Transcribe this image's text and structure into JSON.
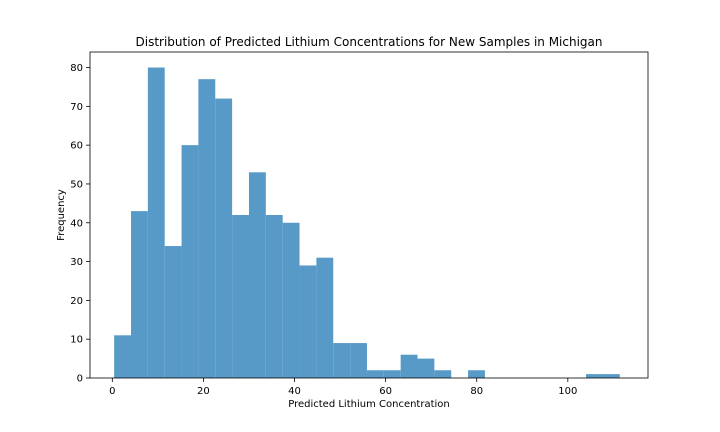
{
  "chart_data": {
    "type": "bar",
    "title": "Distribution of Predicted Lithium Concentrations for New Samples in Michigan",
    "xlabel": "Predicted Lithium Concentration",
    "ylabel": "Frequency",
    "xlim": [
      -4.9,
      117.6
    ],
    "ylim": [
      0,
      84
    ],
    "xticks": [
      0,
      20,
      40,
      60,
      80,
      100
    ],
    "yticks": [
      0,
      10,
      20,
      30,
      40,
      50,
      60,
      70,
      80
    ],
    "bar_color": "#5799c7",
    "bins": [
      {
        "x0": 0.4,
        "x1": 4.1,
        "value": 11
      },
      {
        "x0": 4.1,
        "x1": 7.8,
        "value": 43
      },
      {
        "x0": 7.8,
        "x1": 11.5,
        "value": 80
      },
      {
        "x0": 11.5,
        "x1": 15.2,
        "value": 34
      },
      {
        "x0": 15.2,
        "x1": 18.9,
        "value": 60
      },
      {
        "x0": 18.9,
        "x1": 22.6,
        "value": 77
      },
      {
        "x0": 22.6,
        "x1": 26.3,
        "value": 72
      },
      {
        "x0": 26.3,
        "x1": 30.0,
        "value": 42
      },
      {
        "x0": 30.0,
        "x1": 33.7,
        "value": 53
      },
      {
        "x0": 33.7,
        "x1": 37.4,
        "value": 42
      },
      {
        "x0": 37.4,
        "x1": 41.1,
        "value": 40
      },
      {
        "x0": 41.1,
        "x1": 44.8,
        "value": 29
      },
      {
        "x0": 44.8,
        "x1": 48.5,
        "value": 31
      },
      {
        "x0": 48.5,
        "x1": 52.2,
        "value": 9
      },
      {
        "x0": 52.2,
        "x1": 55.9,
        "value": 9
      },
      {
        "x0": 55.9,
        "x1": 59.6,
        "value": 2
      },
      {
        "x0": 59.6,
        "x1": 63.3,
        "value": 2
      },
      {
        "x0": 63.3,
        "x1": 67.0,
        "value": 6
      },
      {
        "x0": 67.0,
        "x1": 70.7,
        "value": 5
      },
      {
        "x0": 70.7,
        "x1": 74.4,
        "value": 2
      },
      {
        "x0": 74.4,
        "x1": 78.1,
        "value": 0
      },
      {
        "x0": 78.1,
        "x1": 81.8,
        "value": 2
      },
      {
        "x0": 81.8,
        "x1": 85.5,
        "value": 0
      },
      {
        "x0": 85.5,
        "x1": 89.2,
        "value": 0
      },
      {
        "x0": 89.2,
        "x1": 92.9,
        "value": 0
      },
      {
        "x0": 92.9,
        "x1": 96.6,
        "value": 0
      },
      {
        "x0": 96.6,
        "x1": 100.3,
        "value": 0
      },
      {
        "x0": 100.3,
        "x1": 104.0,
        "value": 0
      },
      {
        "x0": 104.0,
        "x1": 107.7,
        "value": 1
      },
      {
        "x0": 107.7,
        "x1": 111.4,
        "value": 1
      }
    ],
    "grid": false,
    "legend": "none"
  }
}
